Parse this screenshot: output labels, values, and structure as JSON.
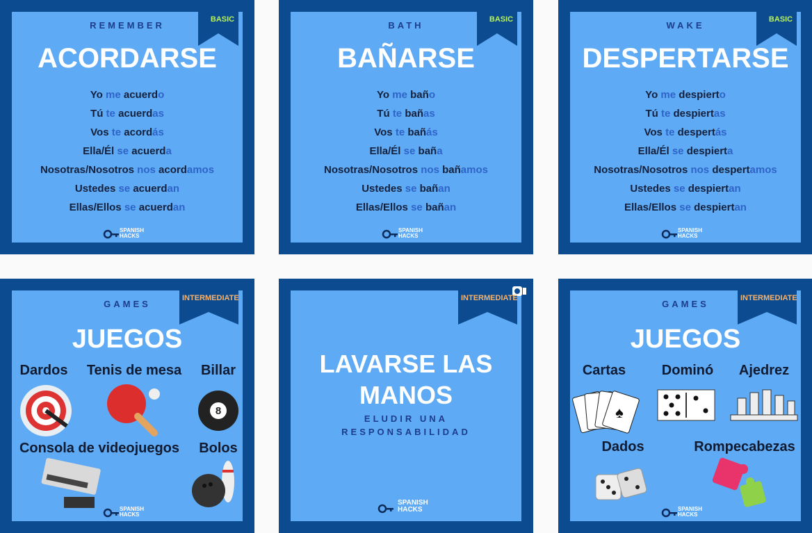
{
  "posts": [
    {
      "ribbon": "BASIC",
      "english": "REMEMBER",
      "title": "ACORDARSE",
      "conjugations": [
        [
          "Yo",
          "me",
          "acuerd",
          "o"
        ],
        [
          "Tú",
          "te",
          "acuerd",
          "as"
        ],
        [
          "Vos",
          "te",
          "acord",
          "ás"
        ],
        [
          "Ella/Él",
          "se",
          "acuerd",
          "a"
        ],
        [
          "Nosotras/Nosotros",
          "nos",
          "acord",
          "amos"
        ],
        [
          "Ustedes",
          "se",
          "acuerd",
          "an"
        ],
        [
          "Ellas/Ellos",
          "se",
          "acuerd",
          "an"
        ]
      ],
      "logo": [
        "SPANISH",
        "HACKS"
      ]
    },
    {
      "ribbon": "BASIC",
      "english": "BATH",
      "title": "BAÑARSE",
      "conjugations": [
        [
          "Yo",
          "me",
          "bañ",
          "o"
        ],
        [
          "Tú",
          "te",
          "bañ",
          "as"
        ],
        [
          "Vos",
          "te",
          "bañ",
          "ás"
        ],
        [
          "Ella/Él",
          "se",
          "bañ",
          "a"
        ],
        [
          "Nosotras/Nosotros",
          "nos",
          "bañ",
          "amos"
        ],
        [
          "Ustedes",
          "se",
          "bañ",
          "an"
        ],
        [
          "Ellas/Ellos",
          "se",
          "bañ",
          "an"
        ]
      ],
      "logo": [
        "SPANISH",
        "HACKS"
      ]
    },
    {
      "ribbon": "BASIC",
      "english": "WAKE",
      "title": "DESPERTARSE",
      "conjugations": [
        [
          "Yo",
          "me",
          "despiert",
          "o"
        ],
        [
          "Tú",
          "te",
          "despiert",
          "as"
        ],
        [
          "Vos",
          "te",
          "despert",
          "ás"
        ],
        [
          "Ella/Él",
          "se",
          "despiert",
          "a"
        ],
        [
          "Nosotras/Nosotros",
          "nos",
          "despert",
          "amos"
        ],
        [
          "Ustedes",
          "se",
          "despiert",
          "an"
        ],
        [
          "Ellas/Ellos",
          "se",
          "despiert",
          "an"
        ]
      ],
      "logo": [
        "SPANISH",
        "HACKS"
      ]
    },
    {
      "ribbon": "INTERMEDIATE",
      "english": "GAMES",
      "title": "JUEGOS",
      "items": [
        "Dardos",
        "Tenis de mesa",
        "Billar",
        "Consola de videojuegos",
        "Bolos"
      ],
      "logo": [
        "SPANISH",
        "HACKS"
      ]
    },
    {
      "ribbon": "INTERMEDIATE",
      "title": "LAVARSE LAS MANOS",
      "subtitle": "ELUDIR UNA RESPONSABILIDAD",
      "logo": [
        "SPANISH",
        "HACKS"
      ]
    },
    {
      "ribbon": "INTERMEDIATE",
      "english": "GAMES",
      "title": "JUEGOS",
      "items": [
        "Cartas",
        "Dominó",
        "Ajedrez",
        "Dados",
        "Rompecabezas"
      ],
      "logo": [
        "SPANISH",
        "HACKS"
      ]
    }
  ]
}
